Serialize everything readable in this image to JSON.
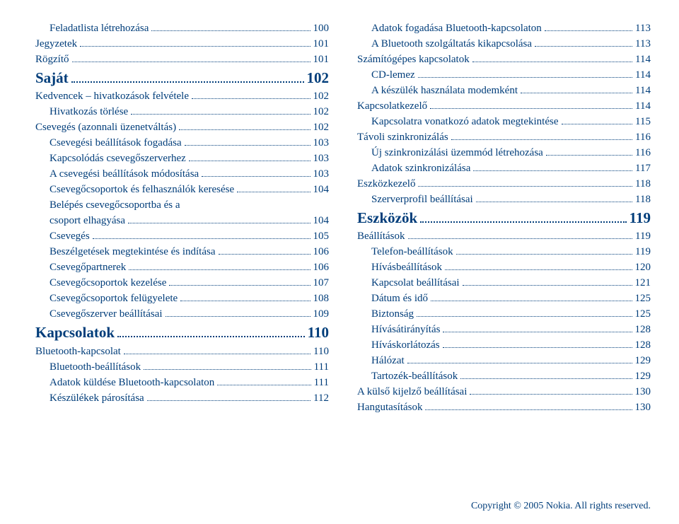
{
  "colors": {
    "text": "#003d7a",
    "background": "#ffffff"
  },
  "typography": {
    "body_fontsize": 15,
    "section_fontsize": 21,
    "font_family": "Georgia, Times New Roman, serif"
  },
  "left": [
    {
      "label": "Feladatlista létrehozása",
      "page": "100",
      "level": 1,
      "type": "item"
    },
    {
      "label": "Jegyzetek",
      "page": "101",
      "level": 0,
      "type": "item"
    },
    {
      "label": "Rögzítő",
      "page": "101",
      "level": 0,
      "type": "item"
    },
    {
      "label": "Saját",
      "page": "102",
      "level": 0,
      "type": "section"
    },
    {
      "label": "Kedvencek – hivatkozások felvétele",
      "page": "102",
      "level": 0,
      "type": "item"
    },
    {
      "label": "Hivatkozás törlése",
      "page": "102",
      "level": 1,
      "type": "item"
    },
    {
      "label": "Csevegés (azonnali üzenetváltás)",
      "page": "102",
      "level": 0,
      "type": "item"
    },
    {
      "label": "Csevegési beállítások fogadása",
      "page": "103",
      "level": 1,
      "type": "item"
    },
    {
      "label": "Kapcsolódás csevegőszerverhez",
      "page": "103",
      "level": 1,
      "type": "item"
    },
    {
      "label": "A csevegési beállítások módosítása",
      "page": "103",
      "level": 1,
      "type": "item"
    },
    {
      "label": "Csevegőcsoportok és felhasználók keresése",
      "page": "104",
      "level": 1,
      "type": "item"
    },
    {
      "label": "Belépés csevegőcsoportba és a",
      "wrap": "csoport elhagyása",
      "page": "104",
      "level": 1,
      "type": "item"
    },
    {
      "label": "Csevegés",
      "page": "105",
      "level": 1,
      "type": "item"
    },
    {
      "label": "Beszélgetések megtekintése és indítása",
      "page": "106",
      "level": 1,
      "type": "item"
    },
    {
      "label": "Csevegőpartnerek",
      "page": "106",
      "level": 1,
      "type": "item"
    },
    {
      "label": "Csevegőcsoportok kezelése",
      "page": "107",
      "level": 1,
      "type": "item"
    },
    {
      "label": "Csevegőcsoportok felügyelete",
      "page": "108",
      "level": 1,
      "type": "item"
    },
    {
      "label": "Csevegőszerver beállításai",
      "page": "109",
      "level": 1,
      "type": "item"
    },
    {
      "label": "Kapcsolatok",
      "page": "110",
      "level": 0,
      "type": "section"
    },
    {
      "label": "Bluetooth-kapcsolat",
      "page": "110",
      "level": 0,
      "type": "item"
    },
    {
      "label": "Bluetooth-beállítások",
      "page": "111",
      "level": 1,
      "type": "item"
    },
    {
      "label": "Adatok küldése Bluetooth-kapcsolaton",
      "page": "111",
      "level": 1,
      "type": "item"
    },
    {
      "label": "Készülékek párosítása",
      "page": "112",
      "level": 1,
      "type": "item"
    }
  ],
  "right": [
    {
      "label": "Adatok fogadása Bluetooth-kapcsolaton",
      "page": "113",
      "level": 1,
      "type": "item"
    },
    {
      "label": "A Bluetooth szolgáltatás kikapcsolása",
      "page": "113",
      "level": 1,
      "type": "item"
    },
    {
      "label": "Számítógépes kapcsolatok",
      "page": "114",
      "level": 0,
      "type": "item"
    },
    {
      "label": "CD-lemez",
      "page": "114",
      "level": 1,
      "type": "item"
    },
    {
      "label": "A készülék használata modemként",
      "page": "114",
      "level": 1,
      "type": "item"
    },
    {
      "label": "Kapcsolatkezelő",
      "page": "114",
      "level": 0,
      "type": "item"
    },
    {
      "label": "Kapcsolatra vonatkozó adatok megtekintése",
      "page": "115",
      "level": 1,
      "type": "item"
    },
    {
      "label": "Távoli szinkronizálás",
      "page": "116",
      "level": 0,
      "type": "item"
    },
    {
      "label": "Új szinkronizálási üzemmód létrehozása",
      "page": "116",
      "level": 1,
      "type": "item"
    },
    {
      "label": "Adatok szinkronizálása",
      "page": "117",
      "level": 1,
      "type": "item"
    },
    {
      "label": "Eszközkezelő",
      "page": "118",
      "level": 0,
      "type": "item"
    },
    {
      "label": "Szerverprofil beállításai",
      "page": "118",
      "level": 1,
      "type": "item"
    },
    {
      "label": "Eszközök",
      "page": "119",
      "level": 0,
      "type": "section"
    },
    {
      "label": "Beállítások",
      "page": "119",
      "level": 0,
      "type": "item"
    },
    {
      "label": "Telefon-beállítások",
      "page": "119",
      "level": 1,
      "type": "item"
    },
    {
      "label": "Hívásbeállítások",
      "page": "120",
      "level": 1,
      "type": "item"
    },
    {
      "label": "Kapcsolat beállításai",
      "page": "121",
      "level": 1,
      "type": "item"
    },
    {
      "label": "Dátum és idő",
      "page": "125",
      "level": 1,
      "type": "item"
    },
    {
      "label": "Biztonság",
      "page": "125",
      "level": 1,
      "type": "item"
    },
    {
      "label": "Hívásátirányítás",
      "page": "128",
      "level": 1,
      "type": "item"
    },
    {
      "label": "Híváskorlátozás",
      "page": "128",
      "level": 1,
      "type": "item"
    },
    {
      "label": "Hálózat",
      "page": "129",
      "level": 1,
      "type": "item"
    },
    {
      "label": "Tartozék-beállítások",
      "page": "129",
      "level": 1,
      "type": "item"
    },
    {
      "label": "A külső kijelző beállításai",
      "page": "130",
      "level": 0,
      "type": "item"
    },
    {
      "label": "Hangutasítások",
      "page": "130",
      "level": 0,
      "type": "item"
    }
  ],
  "footer": "Copyright © 2005 Nokia. All rights reserved."
}
